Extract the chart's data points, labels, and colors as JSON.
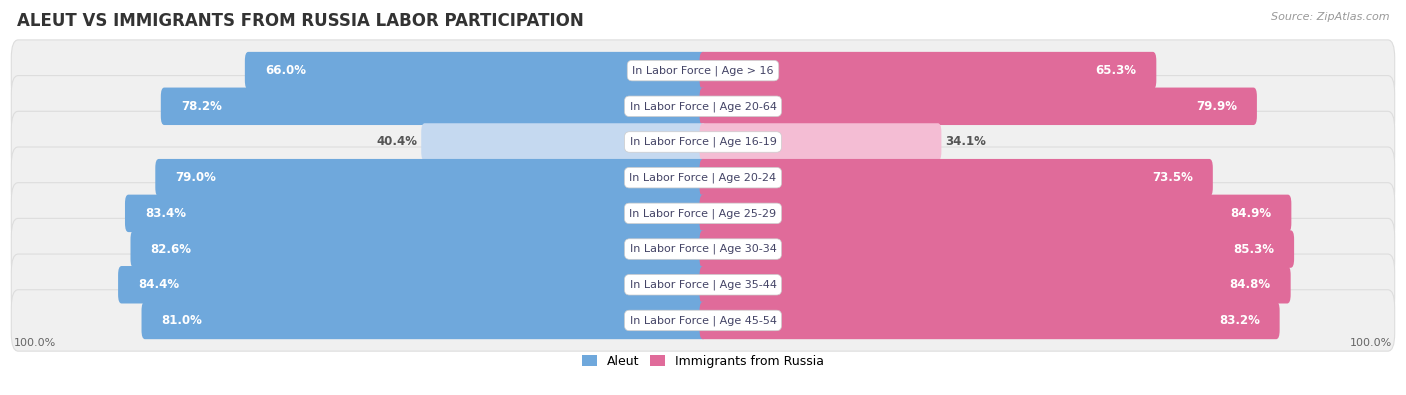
{
  "title": "ALEUT VS IMMIGRANTS FROM RUSSIA LABOR PARTICIPATION",
  "source": "Source: ZipAtlas.com",
  "categories": [
    "In Labor Force | Age > 16",
    "In Labor Force | Age 20-64",
    "In Labor Force | Age 16-19",
    "In Labor Force | Age 20-24",
    "In Labor Force | Age 25-29",
    "In Labor Force | Age 30-34",
    "In Labor Force | Age 35-44",
    "In Labor Force | Age 45-54"
  ],
  "aleut_values": [
    66.0,
    78.2,
    40.4,
    79.0,
    83.4,
    82.6,
    84.4,
    81.0
  ],
  "russia_values": [
    65.3,
    79.9,
    34.1,
    73.5,
    84.9,
    85.3,
    84.8,
    83.2
  ],
  "aleut_color": "#6fa8dc",
  "aleut_color_light": "#c5d9f0",
  "russia_color": "#e06b9a",
  "russia_color_light": "#f4bdd4",
  "row_bg_color": "#f0f0f0",
  "row_edge_color": "#dddddd",
  "label_color_white": "#ffffff",
  "label_color_dark": "#555555",
  "category_text_color": "#444466",
  "max_value": 100.0,
  "title_fontsize": 12,
  "bar_label_fontsize": 8.5,
  "category_fontsize": 8,
  "legend_fontsize": 9,
  "axis_label_fontsize": 8,
  "background_color": "#ffffff"
}
